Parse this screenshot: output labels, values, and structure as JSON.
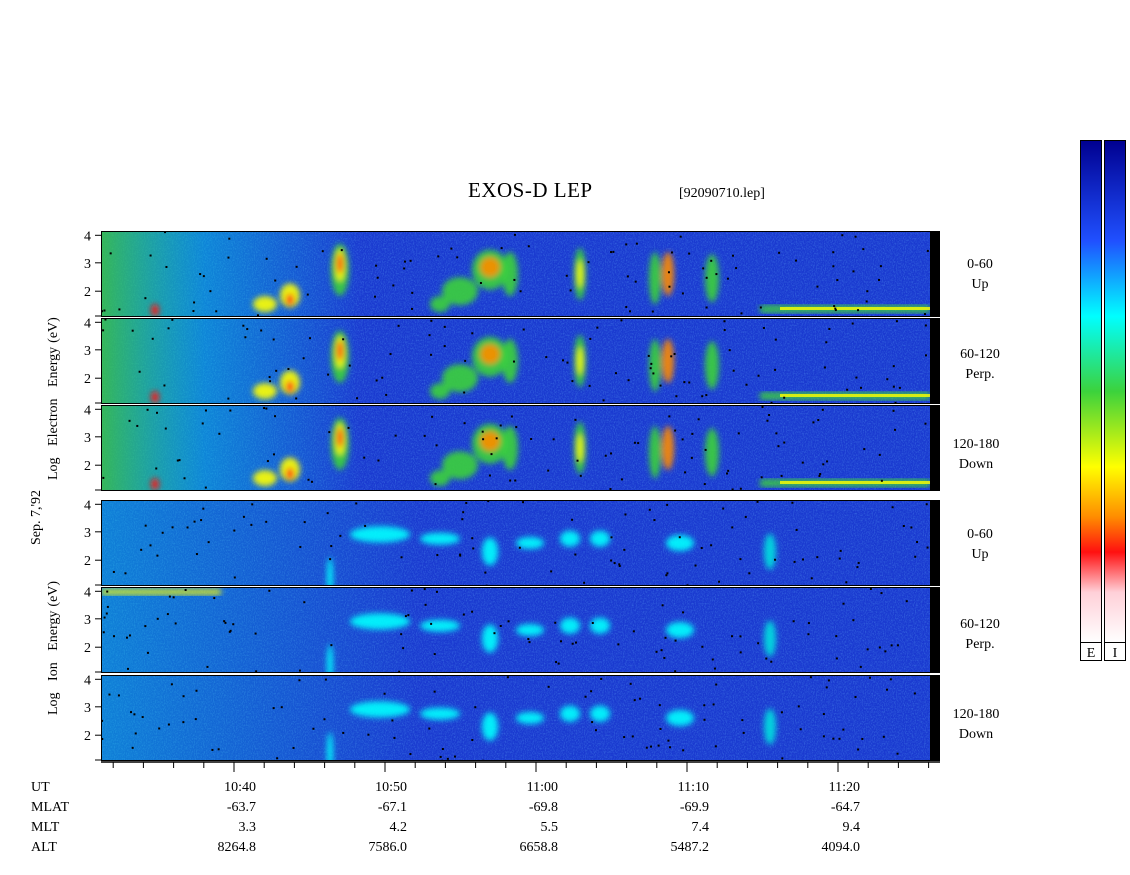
{
  "title": "EXOS-D LEP",
  "file_label": "[92090710.lep]",
  "date_label": "Sep. 7,'92",
  "colors": {
    "background": "#ffffff",
    "spectrogram_base": "#1a3ad0",
    "frame": "#000000",
    "colormap": [
      "#ffffff",
      "#ffd0d8",
      "#ff1010",
      "#ff8c00",
      "#ffff00",
      "#3cd23c",
      "#00ffff",
      "#2050ff",
      "#000090"
    ]
  },
  "colorbars": [
    {
      "label": "E"
    },
    {
      "label": "I"
    }
  ],
  "electron": {
    "ylabel_lines": [
      "Log",
      "Electron",
      "Energy",
      "(eV)"
    ],
    "panels": [
      {
        "name": "0-60",
        "sub": "Up"
      },
      {
        "name": "60-120",
        "sub": "Perp."
      },
      {
        "name": "120-180",
        "sub": "Down"
      }
    ]
  },
  "ion": {
    "ylabel_lines": [
      "Log",
      "Ion",
      "Energy",
      "(eV)"
    ],
    "panels": [
      {
        "name": "0-60",
        "sub": "Up"
      },
      {
        "name": "60-120",
        "sub": "Perp."
      },
      {
        "name": "120-180",
        "sub": "Down"
      }
    ]
  },
  "footer_rows": [
    {
      "label": "UT",
      "values": [
        "10:40",
        "10:50",
        "11:00",
        "11:10",
        "11:20"
      ]
    },
    {
      "label": "MLAT",
      "values": [
        "-63.7",
        "-67.1",
        "-69.8",
        "-69.9",
        "-64.7"
      ]
    },
    {
      "label": "MLT",
      "values": [
        "3.3",
        "4.2",
        "5.5",
        "7.4",
        "9.4"
      ]
    },
    {
      "label": "ALT",
      "values": [
        "8264.8",
        "7586.0",
        "6658.8",
        "5487.2",
        "4094.0"
      ]
    }
  ],
  "chart_data": {
    "type": "heatmap",
    "title": "EXOS-D LEP",
    "x_axis": {
      "quantity": "UT",
      "major_ticks": [
        "10:40",
        "10:50",
        "11:00",
        "11:10",
        "11:20"
      ],
      "minor_tick_interval_min": 2
    },
    "y_axis": {
      "scale": "log",
      "tick_labels": [
        "2",
        "3",
        "4"
      ]
    },
    "series": [
      {
        "species": "Electron",
        "pitch_angle": "0-60",
        "direction": "Up"
      },
      {
        "species": "Electron",
        "pitch_angle": "60-120",
        "direction": "Perp."
      },
      {
        "species": "Electron",
        "pitch_angle": "120-180",
        "direction": "Down"
      },
      {
        "species": "Ion",
        "pitch_angle": "0-60",
        "direction": "Up"
      },
      {
        "species": "Ion",
        "pitch_angle": "60-120",
        "direction": "Perp."
      },
      {
        "species": "Ion",
        "pitch_angle": "120-180",
        "direction": "Down"
      }
    ]
  }
}
